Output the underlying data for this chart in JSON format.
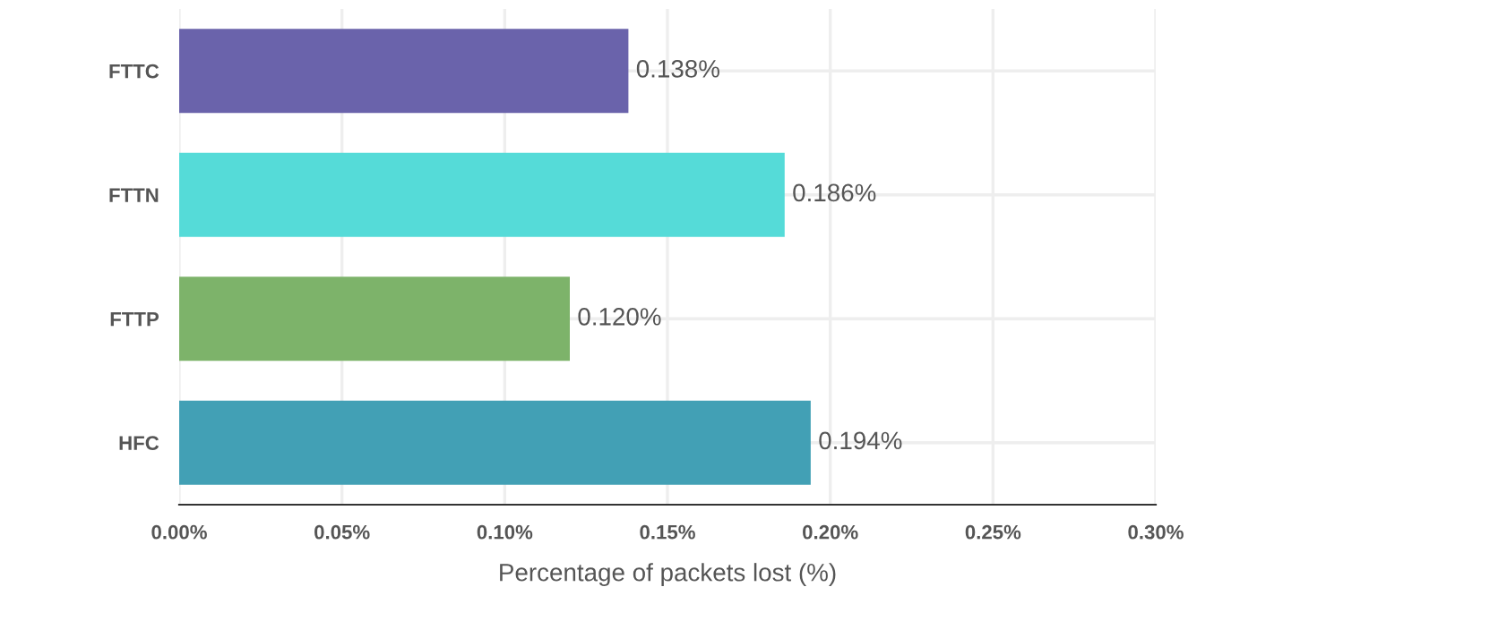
{
  "chart_data": {
    "type": "bar",
    "orientation": "horizontal",
    "xlabel": "Percentage of packets lost (%)",
    "categories": [
      "FTTC",
      "FTTN",
      "FTTP",
      "HFC"
    ],
    "values": [
      0.138,
      0.186,
      0.12,
      0.194
    ],
    "colors": [
      "#6a63ab",
      "#55dbd8",
      "#7db36a",
      "#42a0b5"
    ],
    "value_labels": [
      "0.138%",
      "0.186%",
      "0.120%",
      "0.194%"
    ],
    "xlim": [
      0,
      0.3
    ],
    "xticks": [
      {
        "value": 0,
        "label": "0.00%"
      },
      {
        "value": 0.05,
        "label": "0.05%"
      },
      {
        "value": 0.1,
        "label": "0.10%"
      },
      {
        "value": 0.15,
        "label": "0.15%"
      },
      {
        "value": 0.2,
        "label": "0.20%"
      },
      {
        "value": 0.25,
        "label": "0.25%"
      },
      {
        "value": 0.3,
        "label": "0.30%"
      }
    ],
    "grid": true
  }
}
